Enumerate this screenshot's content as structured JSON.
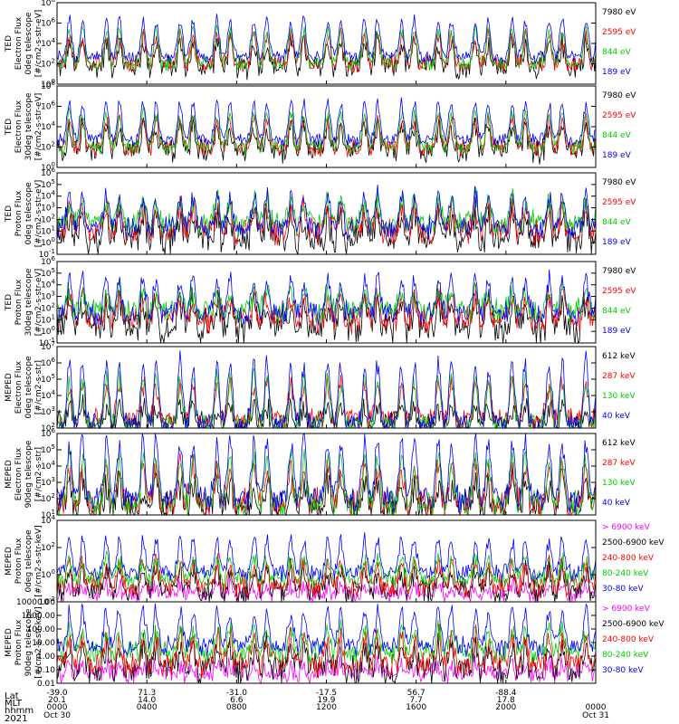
{
  "colors": {
    "black": "#000000",
    "blue": "#0000ff",
    "red": "#ff0000",
    "green": "#00cc00",
    "magenta": "#ff00ff",
    "frame": "#000000",
    "background": "#ffffff"
  },
  "chart_data": [
    {
      "type": "line",
      "ylabel": [
        "TED",
        "Electron Flux",
        "0deg telescope",
        "[#/cm2-s-str-eV]"
      ],
      "yticks": [
        "10^0",
        "10^2",
        "10^4",
        "10^6",
        "10^8"
      ],
      "ylim": [
        1,
        100000000
      ],
      "yscale": "log",
      "series": [
        {
          "name": "7980 eV",
          "color": "#000000",
          "baseline": 50,
          "peak": 10000,
          "noise": 3.0
        },
        {
          "name": "2595 eV",
          "color": "#ff0000",
          "baseline": 80,
          "peak": 50000,
          "noise": 1.5
        },
        {
          "name": "844 eV",
          "color": "#00cc00",
          "baseline": 100,
          "peak": 200000,
          "noise": 1.2
        },
        {
          "name": "189 eV",
          "color": "#0000ff",
          "baseline": 500,
          "peak": 2000000,
          "noise": 1.0
        }
      ]
    },
    {
      "type": "line",
      "ylabel": [
        "TED",
        "Electron Flux",
        "30deg telescope",
        "[#/cm2-s-str-eV]"
      ],
      "yticks": [
        "10^0",
        "10^2",
        "10^4",
        "10^6",
        "10^8"
      ],
      "ylim": [
        1,
        100000000
      ],
      "yscale": "log",
      "series": [
        {
          "name": "7980 eV",
          "color": "#000000",
          "baseline": 50,
          "peak": 10000,
          "noise": 3.0
        },
        {
          "name": "2595 eV",
          "color": "#ff0000",
          "baseline": 80,
          "peak": 50000,
          "noise": 1.5
        },
        {
          "name": "844 eV",
          "color": "#00cc00",
          "baseline": 100,
          "peak": 200000,
          "noise": 1.2
        },
        {
          "name": "189 eV",
          "color": "#0000ff",
          "baseline": 500,
          "peak": 2000000,
          "noise": 1.0
        }
      ]
    },
    {
      "type": "line",
      "ylabel": [
        "TED",
        "Proton Flux",
        "0deg telescope",
        "[#/cm2-s-str-eV]"
      ],
      "yticks": [
        "10^-1",
        "10^0",
        "10^1",
        "10^2",
        "10^3",
        "10^4",
        "10^5",
        "10^6"
      ],
      "ylim": [
        0.1,
        1000000
      ],
      "yscale": "log",
      "series": [
        {
          "name": "7980 eV",
          "color": "#000000",
          "baseline": 2,
          "peak": 300,
          "noise": 4.0
        },
        {
          "name": "2595 eV",
          "color": "#ff0000",
          "baseline": 10,
          "peak": 1000,
          "noise": 2.5
        },
        {
          "name": "844 eV",
          "color": "#00cc00",
          "baseline": 50,
          "peak": 3000,
          "noise": 2.5
        },
        {
          "name": "189 eV",
          "color": "#0000ff",
          "baseline": 20,
          "peak": 10000,
          "noise": 2.0
        }
      ]
    },
    {
      "type": "line",
      "ylabel": [
        "TED",
        "Proton Flux",
        "30deg telescope",
        "[#/cm2-s-str-eV]"
      ],
      "yticks": [
        "10^-1",
        "10^0",
        "10^1",
        "10^2",
        "10^3",
        "10^4",
        "10^5",
        "10^6"
      ],
      "ylim": [
        0.1,
        1000000
      ],
      "yscale": "log",
      "series": [
        {
          "name": "7980 eV",
          "color": "#000000",
          "baseline": 2,
          "peak": 300,
          "noise": 4.0
        },
        {
          "name": "2595 eV",
          "color": "#ff0000",
          "baseline": 10,
          "peak": 1000,
          "noise": 2.5
        },
        {
          "name": "844 eV",
          "color": "#00cc00",
          "baseline": 60,
          "peak": 3000,
          "noise": 2.5
        },
        {
          "name": "189 eV",
          "color": "#0000ff",
          "baseline": 30,
          "peak": 30000,
          "noise": 2.0
        }
      ]
    },
    {
      "type": "line",
      "ylabel": [
        "MEPED",
        "Electron Flux",
        "0deg telescope",
        "[#/cm2-s-str]"
      ],
      "yticks": [
        "10^2",
        "10^3",
        "10^4",
        "10^5",
        "10^6",
        "10^7"
      ],
      "ylim": [
        100,
        10000000
      ],
      "yscale": "log",
      "series": [
        {
          "name": "612 keV",
          "color": "#000000",
          "baseline": 200,
          "peak": 2000,
          "noise": 1.5
        },
        {
          "name": "287 keV",
          "color": "#ff0000",
          "baseline": 300,
          "peak": 50000,
          "noise": 1.3
        },
        {
          "name": "130 keV",
          "color": "#00cc00",
          "baseline": 150,
          "peak": 100000,
          "noise": 1.1
        },
        {
          "name": "40 keV",
          "color": "#0000ff",
          "baseline": 150,
          "peak": 1000000,
          "noise": 1.2
        }
      ]
    },
    {
      "type": "line",
      "ylabel": [
        "MEPED",
        "Electron Flux",
        "90deg telescope",
        "[#/cm2-s-str]"
      ],
      "yticks": [
        "10^1",
        "10^2",
        "10^3",
        "10^4",
        "10^5",
        "10^6"
      ],
      "ylim": [
        10,
        1000000
      ],
      "yscale": "log",
      "series": [
        {
          "name": "612 keV",
          "color": "#000000",
          "baseline": 30,
          "peak": 1000,
          "noise": 2.5
        },
        {
          "name": "287 keV",
          "color": "#ff0000",
          "baseline": 50,
          "peak": 10000,
          "noise": 1.8
        },
        {
          "name": "130 keV",
          "color": "#00cc00",
          "baseline": 40,
          "peak": 30000,
          "noise": 1.5
        },
        {
          "name": "40 keV",
          "color": "#0000ff",
          "baseline": 100,
          "peak": 300000,
          "noise": 1.5
        }
      ]
    },
    {
      "type": "line",
      "ylabel": [
        "MEPED",
        "Proton Flux",
        "0deg telescope",
        "[#/cm2-s-str-keV]"
      ],
      "yticks": [
        "10^-2",
        "10^0",
        "10^2",
        "10^4"
      ],
      "ylim": [
        0.01,
        100000
      ],
      "yscale": "log",
      "series": [
        {
          "name": "> 6900 keV",
          "color": "#ff00ff",
          "baseline": 0.05,
          "peak": 0.2,
          "noise": 1.3
        },
        {
          "name": "2500-6900 keV",
          "color": "#000000",
          "baseline": 0.08,
          "peak": 5,
          "noise": 2.5
        },
        {
          "name": "240-800 keV",
          "color": "#ff0000",
          "baseline": 0.2,
          "peak": 20,
          "noise": 2.0
        },
        {
          "name": "80-240 keV",
          "color": "#00cc00",
          "baseline": 1,
          "peak": 50,
          "noise": 1.5
        },
        {
          "name": "30-80 keV",
          "color": "#0000ff",
          "baseline": 3,
          "peak": 2000,
          "noise": 1.2
        }
      ]
    },
    {
      "type": "line",
      "ylabel": [
        "MEPED",
        "Proton Flux",
        "90deg telescope",
        "[#/cm2-s-str-keV]"
      ],
      "yticks": [
        "0.01",
        "0.10",
        "1.00",
        "10.00",
        "100.00",
        "1000.00",
        "10000.00"
      ],
      "ylim": [
        0.01,
        10000
      ],
      "yscale": "log",
      "series": [
        {
          "name": "> 6900 keV",
          "color": "#ff00ff",
          "baseline": 0.05,
          "peak": 0.2,
          "noise": 1.3
        },
        {
          "name": "2500-6900 keV",
          "color": "#000000",
          "baseline": 0.1,
          "peak": 5,
          "noise": 2.5
        },
        {
          "name": "240-800 keV",
          "color": "#ff0000",
          "baseline": 0.3,
          "peak": 20,
          "noise": 2.0
        },
        {
          "name": "80-240 keV",
          "color": "#00cc00",
          "baseline": 2,
          "peak": 80,
          "noise": 1.5
        },
        {
          "name": "30-80 keV",
          "color": "#0000ff",
          "baseline": 5,
          "peak": 2000,
          "noise": 1.2
        }
      ]
    }
  ],
  "xaxis": {
    "row_labels": [
      "Lat",
      "MLT",
      "hhmm",
      "2021"
    ],
    "columns": [
      {
        "lat": "-39.0",
        "mlt": "20.1",
        "hhmm": "0000",
        "date": "Oct 30"
      },
      {
        "lat": "71.3",
        "mlt": "14.0",
        "hhmm": "0400",
        "date": ""
      },
      {
        "lat": "-31.0",
        "mlt": "6.6",
        "hhmm": "0800",
        "date": ""
      },
      {
        "lat": "-17.5",
        "mlt": "19.9",
        "hhmm": "1200",
        "date": ""
      },
      {
        "lat": "56.7",
        "mlt": "7.7",
        "hhmm": "1600",
        "date": ""
      },
      {
        "lat": "-88.4",
        "mlt": "17.8",
        "hhmm": "2000",
        "date": ""
      },
      {
        "lat": "",
        "mlt": "",
        "hhmm": "0000",
        "date": "Oct 31"
      }
    ]
  }
}
